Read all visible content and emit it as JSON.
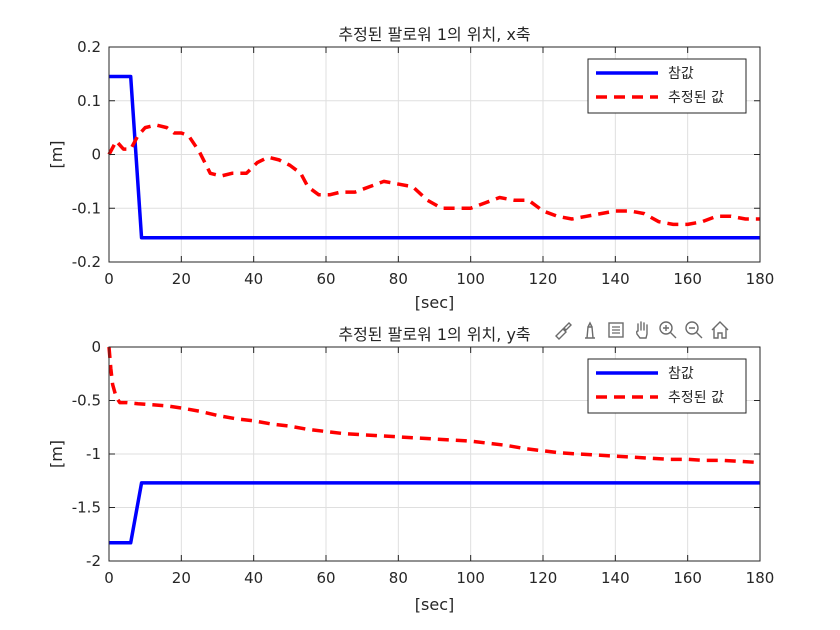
{
  "chart_data": [
    {
      "type": "line",
      "title": "추정된 팔로워 1의 위치, x축",
      "xlabel": "[sec]",
      "ylabel": "[m]",
      "xlim": [
        0,
        180
      ],
      "ylim": [
        -0.2,
        0.2
      ],
      "xticks": [
        0,
        20,
        40,
        60,
        80,
        100,
        120,
        140,
        160,
        180
      ],
      "yticks": [
        -0.2,
        -0.1,
        0,
        0.1,
        0.2
      ],
      "xtick_labels": [
        "0",
        "20",
        "40",
        "60",
        "80",
        "100",
        "120",
        "140",
        "160",
        "180"
      ],
      "ytick_labels": [
        "-0.2",
        "-0.1",
        "0",
        "0.1",
        "0.2"
      ],
      "grid": true,
      "legend_position": "top-right",
      "series": [
        {
          "name": "참값",
          "color": "#0000ff",
          "style": "solid",
          "x": [
            0,
            6,
            9,
            180
          ],
          "y": [
            0.145,
            0.145,
            -0.155,
            -0.155
          ]
        },
        {
          "name": "추정된 값",
          "color": "#ff0000",
          "style": "dashed",
          "x": [
            0,
            2,
            4,
            6,
            8,
            10,
            13,
            16,
            18,
            20,
            22,
            25,
            28,
            31,
            34,
            38,
            41,
            44,
            47,
            50,
            53,
            55,
            58,
            61,
            64,
            68,
            72,
            76,
            80,
            84,
            88,
            92,
            96,
            100,
            104,
            108,
            112,
            116,
            120,
            124,
            128,
            132,
            136,
            140,
            144,
            148,
            152,
            156,
            160,
            164,
            168,
            172,
            176,
            180
          ],
          "y": [
            0.0,
            0.025,
            0.01,
            0.01,
            0.035,
            0.05,
            0.055,
            0.05,
            0.04,
            0.04,
            0.035,
            0.005,
            -0.035,
            -0.04,
            -0.035,
            -0.035,
            -0.015,
            -0.005,
            -0.01,
            -0.02,
            -0.035,
            -0.06,
            -0.075,
            -0.075,
            -0.07,
            -0.07,
            -0.06,
            -0.05,
            -0.055,
            -0.06,
            -0.085,
            -0.1,
            -0.1,
            -0.1,
            -0.09,
            -0.08,
            -0.085,
            -0.085,
            -0.105,
            -0.115,
            -0.12,
            -0.115,
            -0.11,
            -0.105,
            -0.105,
            -0.11,
            -0.125,
            -0.13,
            -0.13,
            -0.125,
            -0.115,
            -0.115,
            -0.12,
            -0.12
          ]
        }
      ]
    },
    {
      "type": "line",
      "title": "추정된 팔로워 1의 위치, y축",
      "xlabel": "[sec]",
      "ylabel": "[m]",
      "xlim": [
        0,
        180
      ],
      "ylim": [
        -2,
        0
      ],
      "xticks": [
        0,
        20,
        40,
        60,
        80,
        100,
        120,
        140,
        160,
        180
      ],
      "yticks": [
        -2,
        -1.5,
        -1,
        -0.5,
        0
      ],
      "xtick_labels": [
        "0",
        "20",
        "40",
        "60",
        "80",
        "100",
        "120",
        "140",
        "160",
        "180"
      ],
      "ytick_labels": [
        "-2",
        "-1.5",
        "-1",
        "-0.5",
        "0"
      ],
      "grid": true,
      "legend_position": "top-right",
      "series": [
        {
          "name": "참값",
          "color": "#0000ff",
          "style": "solid",
          "x": [
            0,
            6,
            9,
            180
          ],
          "y": [
            -1.83,
            -1.83,
            -1.27,
            -1.27
          ]
        },
        {
          "name": "추정된 값",
          "color": "#ff0000",
          "style": "dashed",
          "x": [
            0,
            0.5,
            1,
            2,
            3,
            5,
            8,
            12,
            16,
            20,
            25,
            30,
            35,
            40,
            45,
            50,
            55,
            60,
            65,
            70,
            75,
            80,
            85,
            90,
            95,
            100,
            105,
            110,
            115,
            120,
            125,
            130,
            135,
            140,
            145,
            150,
            155,
            160,
            165,
            170,
            175,
            180
          ],
          "y": [
            0.0,
            -0.2,
            -0.35,
            -0.47,
            -0.52,
            -0.52,
            -0.53,
            -0.54,
            -0.55,
            -0.57,
            -0.6,
            -0.64,
            -0.67,
            -0.69,
            -0.72,
            -0.74,
            -0.77,
            -0.79,
            -0.81,
            -0.82,
            -0.83,
            -0.84,
            -0.85,
            -0.86,
            -0.87,
            -0.88,
            -0.9,
            -0.92,
            -0.95,
            -0.97,
            -0.99,
            -1.0,
            -1.01,
            -1.02,
            -1.03,
            -1.04,
            -1.05,
            -1.05,
            -1.06,
            -1.06,
            -1.07,
            -1.08
          ]
        }
      ]
    }
  ],
  "toolbar": {
    "icons": [
      "brush-icon",
      "data-tip-icon",
      "legend-toggle-icon",
      "pan-icon",
      "zoom-in-icon",
      "zoom-out-icon",
      "home-icon"
    ]
  }
}
